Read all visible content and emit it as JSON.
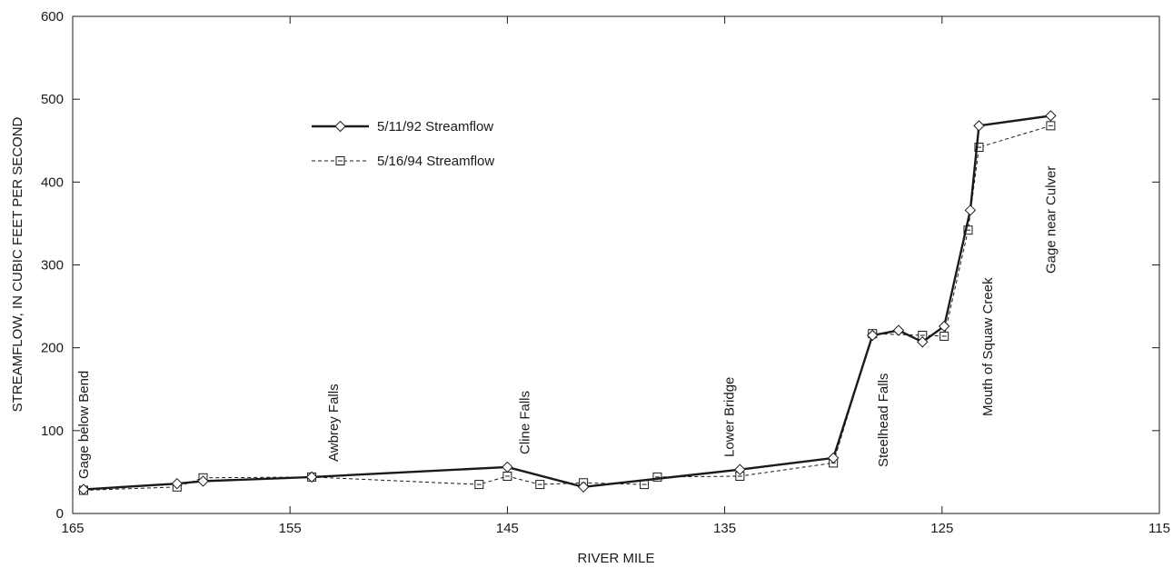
{
  "chart_data": {
    "type": "line",
    "title": "",
    "xlabel": "RIVER MILE",
    "ylabel": "STREAMFLOW, IN CUBIC FEET PER SECOND",
    "xlim": [
      165,
      115
    ],
    "ylim": [
      0,
      600
    ],
    "x_reversed": true,
    "xticks": [
      165,
      155,
      145,
      135,
      125,
      115
    ],
    "yticks": [
      0,
      100,
      200,
      300,
      400,
      500,
      600
    ],
    "xtick_labels": [
      "165",
      "155",
      "145",
      "135",
      "125",
      "115"
    ],
    "ytick_labels": [
      "0",
      "100",
      "200",
      "300",
      "400",
      "500",
      "600"
    ],
    "grid": false,
    "legend_position": "upper-left-center",
    "series": [
      {
        "name": "5/11/92 Streamflow",
        "style": "solid",
        "marker": "diamond",
        "color": "#1a1a1a",
        "x": [
          164.5,
          160.2,
          159.0,
          154.0,
          145.0,
          141.5,
          134.3,
          130.0,
          128.2,
          127.0,
          125.9,
          124.9,
          123.7,
          123.3,
          120.0
        ],
        "y": [
          29,
          36,
          39,
          44,
          56,
          32,
          53,
          67,
          215,
          221,
          207,
          226,
          366,
          468,
          480
        ]
      },
      {
        "name": "5/16/94 Streamflow",
        "style": "dashed",
        "marker": "square",
        "color": "#1a1a1a",
        "x": [
          164.5,
          160.2,
          159.0,
          154.0,
          146.3,
          145.0,
          143.5,
          141.5,
          138.7,
          138.1,
          134.3,
          130.0,
          128.2,
          125.9,
          124.9,
          123.8,
          123.3,
          120.0
        ],
        "y": [
          28,
          32,
          43,
          44,
          35,
          45,
          35,
          37,
          35,
          44,
          45,
          61,
          217,
          215,
          214,
          342,
          442,
          468
        ]
      }
    ],
    "annotations": [
      {
        "text": "Gage below Bend",
        "x": 164.5
      },
      {
        "text": "Awbrey Falls",
        "x": 153.0
      },
      {
        "text": "Cline Falls",
        "x": 144.2
      },
      {
        "text": "Lower Bridge",
        "x": 134.8
      },
      {
        "text": "Steelhead Falls",
        "x": 127.7
      },
      {
        "text": "Mouth of Squaw Creek",
        "x": 122.9
      },
      {
        "text": "Gage near Culver",
        "x": 120.0
      }
    ]
  }
}
